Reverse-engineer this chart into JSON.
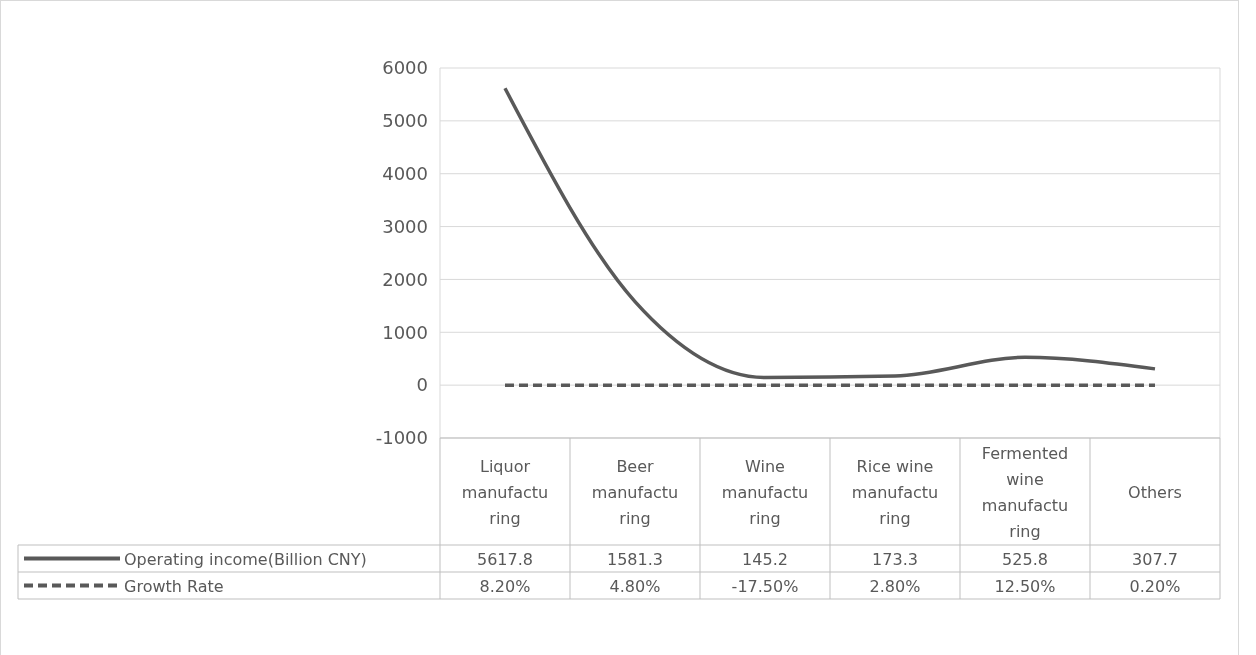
{
  "chart_data": {
    "type": "line",
    "categories": [
      "Liquor manufacturing",
      "Beer manufacturing",
      "Wine manufacturing",
      "Rice wine manufacturing",
      "Fermented wine manufacturing",
      "Others"
    ],
    "series": [
      {
        "name": "Operating income(Billion CNY)",
        "color": "#595959",
        "line_style": "solid",
        "values": [
          5617.8,
          1581.3,
          145.2,
          173.3,
          525.8,
          307.7
        ],
        "value_labels": [
          "5617.8",
          "1581.3",
          "145.2",
          "173.3",
          "525.8",
          "307.7"
        ]
      },
      {
        "name": "Growth Rate",
        "color": "#595959",
        "line_style": "dashed",
        "values": [
          0.082,
          0.048,
          -0.175,
          0.028,
          0.125,
          0.002
        ],
        "value_labels": [
          "8.20%",
          "4.80%",
          "-17.50%",
          "2.80%",
          "12.50%",
          "0.20%"
        ]
      }
    ],
    "ylim": [
      -1000,
      6000
    ],
    "yticks": [
      -1000,
      0,
      1000,
      2000,
      3000,
      4000,
      5000,
      6000
    ],
    "grid": "y",
    "legend": "bottom",
    "marker": "none"
  }
}
